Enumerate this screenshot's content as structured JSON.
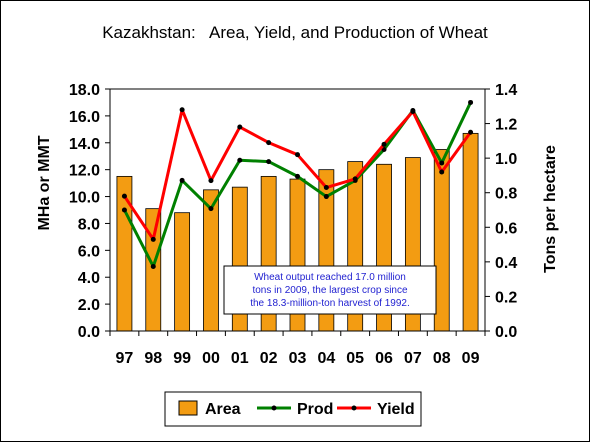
{
  "chart_data": {
    "type": "bar",
    "title": "Kazakhstan:   Area, Yield, and Production of Wheat",
    "categories": [
      "97",
      "98",
      "99",
      "00",
      "01",
      "02",
      "03",
      "04",
      "05",
      "06",
      "07",
      "08",
      "09"
    ],
    "ylabel": "MHa or MMT",
    "y2label": "Tons per hectare",
    "ylim": [
      0,
      18
    ],
    "y2lim": [
      0,
      1.4
    ],
    "yticks": [
      "0.0",
      "2.0",
      "4.0",
      "6.0",
      "8.0",
      "10.0",
      "12.0",
      "14.0",
      "16.0",
      "18.0"
    ],
    "y2ticks": [
      "0.0",
      "0.2",
      "0.4",
      "0.6",
      "0.8",
      "1.0",
      "1.2",
      "1.4"
    ],
    "grid": false,
    "legend_position": "bottom",
    "series": [
      {
        "name": "Area",
        "type": "bar",
        "axis": "left",
        "color": "#f39c12",
        "values": [
          11.5,
          9.1,
          8.8,
          10.5,
          10.7,
          11.5,
          11.3,
          12.0,
          12.6,
          12.4,
          12.9,
          13.5,
          14.7
        ]
      },
      {
        "name": "Prod",
        "type": "line",
        "axis": "left",
        "color": "#008000",
        "values": [
          9.0,
          4.8,
          11.2,
          9.1,
          12.7,
          12.6,
          11.5,
          10.0,
          11.2,
          13.5,
          16.4,
          12.5,
          17.0
        ]
      },
      {
        "name": "Yield",
        "type": "line",
        "axis": "right",
        "color": "#ff0000",
        "values": [
          0.78,
          0.53,
          1.28,
          0.87,
          1.18,
          1.09,
          1.02,
          0.83,
          0.88,
          1.08,
          1.27,
          0.92,
          1.15
        ]
      }
    ],
    "annotation": "Wheat output reached 17.0 million tons in 2009, the largest crop since the 18.3-million-ton harvest of 1992."
  },
  "annotation_lines": [
    "Wheat output reached 17.0 million",
    "tons in 2009, the largest crop since",
    "the 18.3-million-ton harvest of 1992."
  ]
}
